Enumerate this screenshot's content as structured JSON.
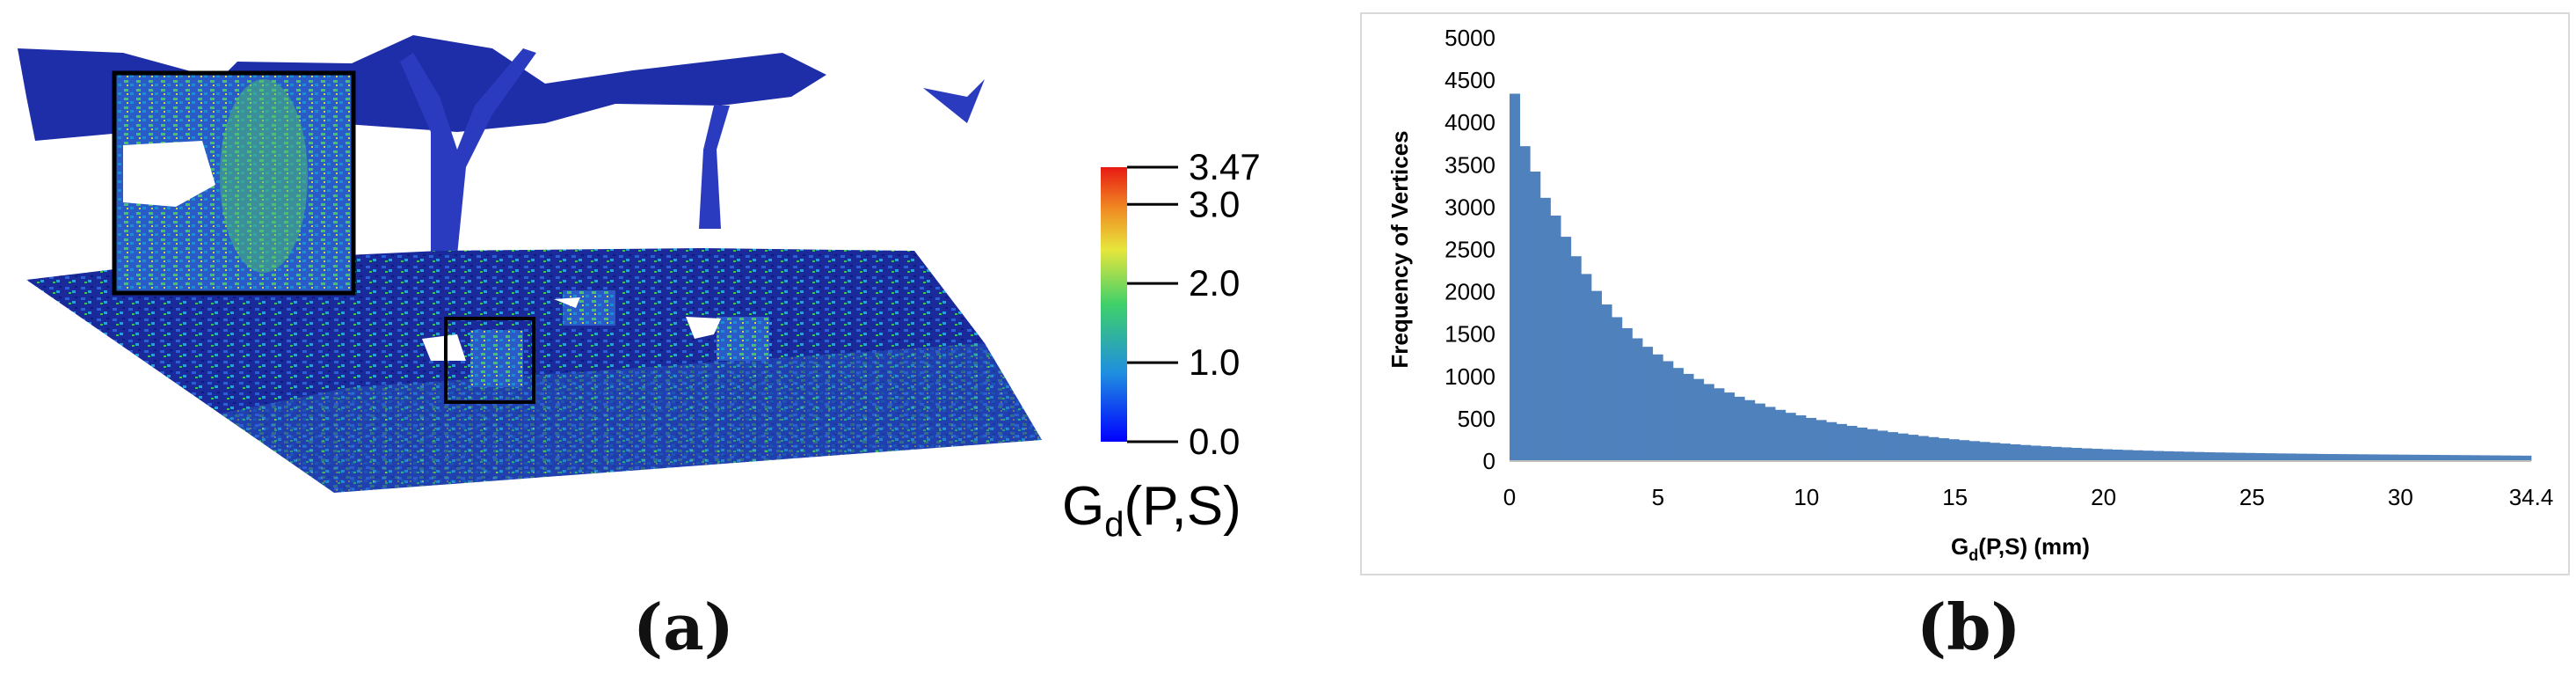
{
  "panel_a": {
    "caption": "(a)",
    "colorbar": {
      "ticks": [
        {
          "label": "3.47",
          "value": 3.47
        },
        {
          "label": "3.0",
          "value": 3.0
        },
        {
          "label": "2.0",
          "value": 2.0
        },
        {
          "label": "1.0",
          "value": 1.0
        },
        {
          "label": "0.0",
          "value": 0.0
        }
      ],
      "min": 0.0,
      "max": 3.47,
      "label_main": "G",
      "label_sub": "d",
      "label_rest": "(P,S)"
    }
  },
  "panel_b": {
    "caption": "(b)"
  },
  "chart_data": {
    "type": "bar",
    "title": "",
    "xlabel_main": "G",
    "xlabel_sub": "d",
    "xlabel_rest": "(P,S) (mm)",
    "ylabel": "Frequency of Vertices",
    "xlim": [
      0,
      34.4
    ],
    "ylim": [
      0,
      5000
    ],
    "x_ticks": [
      {
        "value": 0,
        "label": "0"
      },
      {
        "value": 5,
        "label": "5"
      },
      {
        "value": 10,
        "label": "10"
      },
      {
        "value": 15,
        "label": "15"
      },
      {
        "value": 20,
        "label": "20"
      },
      {
        "value": 25,
        "label": "25"
      },
      {
        "value": 30,
        "label": "30"
      },
      {
        "value": 34.4,
        "label": "34.4"
      }
    ],
    "y_ticks": [
      0,
      500,
      1000,
      1500,
      2000,
      2500,
      3000,
      3500,
      4000,
      4500,
      5000
    ],
    "bin_width": 0.344,
    "color": "#4f81bd",
    "values": [
      4340,
      3720,
      3420,
      3110,
      2900,
      2650,
      2420,
      2210,
      2010,
      1850,
      1700,
      1570,
      1450,
      1350,
      1260,
      1180,
      1100,
      1030,
      970,
      910,
      860,
      810,
      760,
      720,
      680,
      640,
      605,
      570,
      540,
      510,
      485,
      460,
      438,
      416,
      396,
      377,
      359,
      342,
      326,
      311,
      296,
      283,
      270,
      258,
      247,
      236,
      226,
      216,
      207,
      198,
      190,
      182,
      175,
      168,
      162,
      156,
      150,
      145,
      140,
      135,
      131,
      127,
      123,
      119,
      116,
      113,
      110,
      107,
      104,
      102,
      100,
      98,
      96,
      94,
      92,
      90,
      89,
      87,
      86,
      84,
      83,
      82,
      81,
      80,
      79,
      78,
      77,
      76,
      75,
      74,
      73,
      72,
      71,
      70,
      69,
      68,
      67,
      66,
      65,
      64
    ]
  }
}
